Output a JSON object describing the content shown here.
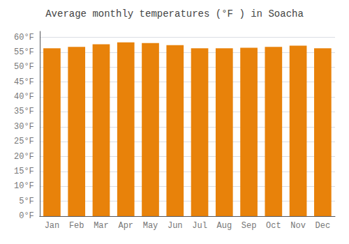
{
  "chart_data": {
    "type": "bar",
    "title": "Average monthly temperatures (°F ) in Soacha",
    "categories": [
      "Jan",
      "Feb",
      "Mar",
      "Apr",
      "May",
      "Jun",
      "Jul",
      "Aug",
      "Sep",
      "Oct",
      "Nov",
      "Dec"
    ],
    "values": [
      56.3,
      56.8,
      57.7,
      58.3,
      58.1,
      57.4,
      56.3,
      56.3,
      56.5,
      56.8,
      57.2,
      56.3
    ],
    "color": "#E8820A",
    "ylim": [
      0,
      62
    ],
    "yticks": [
      {
        "value": 0,
        "label": "0°F"
      },
      {
        "value": 5,
        "label": "5°F"
      },
      {
        "value": 10,
        "label": "10°F"
      },
      {
        "value": 15,
        "label": "15°F"
      },
      {
        "value": 20,
        "label": "20°F"
      },
      {
        "value": 25,
        "label": "25°F"
      },
      {
        "value": 30,
        "label": "30°F"
      },
      {
        "value": 35,
        "label": "35°F"
      },
      {
        "value": 40,
        "label": "40°F"
      },
      {
        "value": 45,
        "label": "45°F"
      },
      {
        "value": 50,
        "label": "50°F"
      },
      {
        "value": 55,
        "label": "55°F"
      },
      {
        "value": 60,
        "label": "60°F"
      }
    ],
    "grid": true
  }
}
